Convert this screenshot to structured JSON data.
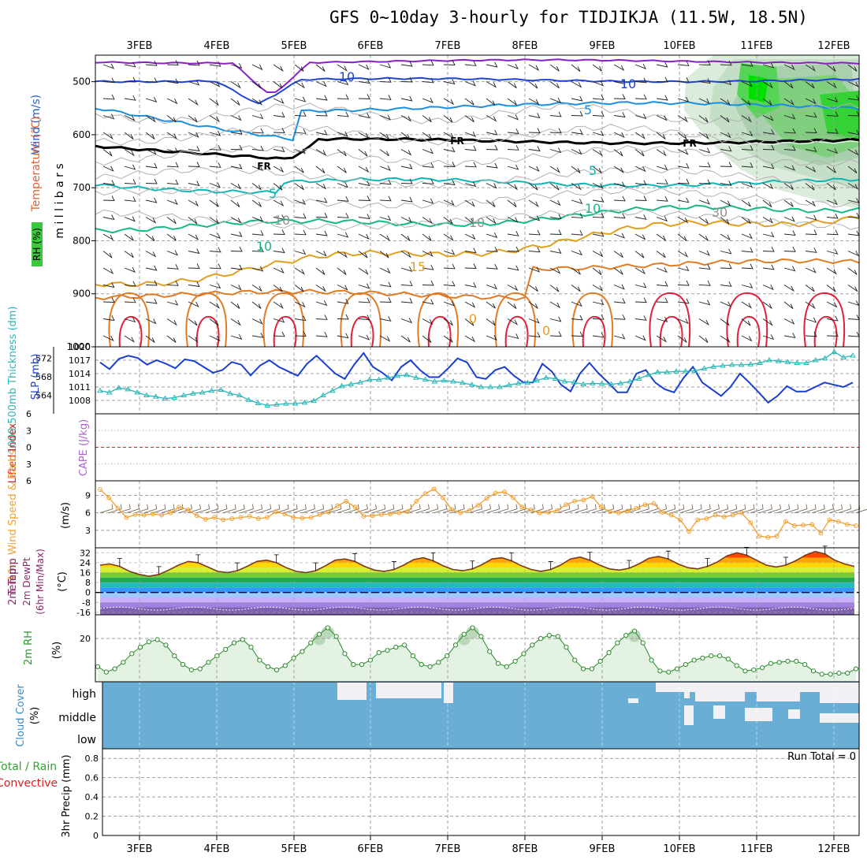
{
  "title": "GFS 0~10day 3-hourly for TIDJIKJA (11.5W, 18.5N)",
  "dates": [
    "3FEB",
    "4FEB",
    "5FEB",
    "6FEB",
    "7FEB",
    "8FEB",
    "9FEB",
    "10FEB",
    "11FEB",
    "12FEB"
  ],
  "colors": {
    "temp_warm": "#e08a1e",
    "temp_hot": "#e8213a",
    "wind_cyan": "#15a9d6",
    "wind_blue": "#1e45d0",
    "slp": "#1a3fd0",
    "thickness": "#2bb7b7",
    "wind10m": "#f0a030",
    "rh_line": "#2a8a2a",
    "rh_fill": "#e4f2e4",
    "cloud": "#6aaed6",
    "grid": "#a0a0a0",
    "zero_line": "#e02020"
  },
  "chart_data": [
    {
      "type": "heatmap",
      "panel": "cross-section",
      "ylabel": "m i l l i b a r s",
      "side_labels": [
        "Wind (m/s)",
        "Temperature (°C)",
        "RH (%)"
      ],
      "yticks": [
        500,
        600,
        700,
        800,
        900,
        1000
      ],
      "ylim": [
        1000,
        450
      ],
      "contour_labels": [
        "10",
        "10",
        "5",
        "FR",
        "FR",
        "FR",
        "5",
        "5",
        "10",
        "10",
        "15",
        "10",
        "10",
        "30",
        "0",
        "0"
      ]
    },
    {
      "type": "line",
      "panel": "slp-thickness",
      "left_label": "1000-500mb Thickness (dm)",
      "right_label": "SLP (mb)",
      "left_ticks": [
        572,
        568,
        564
      ],
      "right_ticks": [
        1020,
        1017,
        1014,
        1011,
        1008
      ],
      "series": [
        {
          "name": "SLP",
          "axis": "right",
          "values": [
            1016.5,
            1015.0,
            1017.3,
            1018.0,
            1017.5,
            1016.0,
            1017.0,
            1016.2,
            1015.2,
            1017.2,
            1016.8,
            1015.5,
            1014.2,
            1014.8,
            1016.6,
            1016.0,
            1013.6,
            1015.8,
            1017.0,
            1015.5,
            1014.5,
            1013.5,
            1016.2,
            1018.0,
            1016.0,
            1014.0,
            1012.8,
            1016.0,
            1018.6,
            1015.5,
            1014.2,
            1012.5,
            1015.5,
            1017.0,
            1014.8,
            1013.2,
            1013.2,
            1015.2,
            1017.4,
            1016.5,
            1013.2,
            1012.8,
            1014.8,
            1015.5,
            1013.5,
            1012.0,
            1012.0,
            1016.2,
            1014.5,
            1011.5,
            1010.0,
            1014.0,
            1016.4,
            1014.0,
            1012.0,
            1009.8,
            1009.8,
            1014.0,
            1014.8,
            1012.0,
            1010.5,
            1009.8,
            1013.0,
            1015.5,
            1012.0,
            1010.5,
            1009.0,
            1011.0,
            1014.0,
            1012.0,
            1009.8,
            1007.5,
            1009.0,
            1011.2,
            1010.0,
            1010.0,
            1011.0,
            1012.0,
            1011.5,
            1011.0,
            1012.0
          ]
        },
        {
          "name": "Thickness",
          "axis": "left",
          "values": [
            565.0,
            564.6,
            565.6,
            565.3,
            564.6,
            564.0,
            563.7,
            563.3,
            563.5,
            564.0,
            564.4,
            564.6,
            565.0,
            565.2,
            564.4,
            564.0,
            563.0,
            562.3,
            561.8,
            562.0,
            562.2,
            562.2,
            562.4,
            562.8,
            564.0,
            565.0,
            566.0,
            566.4,
            566.8,
            567.4,
            567.4,
            567.8,
            568.2,
            568.4,
            567.8,
            567.4,
            567.0,
            567.2,
            567.0,
            566.7,
            566.3,
            565.8,
            565.8,
            565.8,
            566.2,
            566.6,
            566.7,
            567.2,
            567.8,
            567.6,
            567.0,
            566.8,
            566.4,
            566.6,
            566.5,
            566.4,
            566.6,
            567.0,
            567.6,
            568.4,
            569.0,
            569.0,
            569.2,
            569.2,
            569.3,
            569.8,
            570.2,
            570.4,
            570.6,
            570.6,
            570.7,
            571.0,
            571.6,
            571.4,
            571.2,
            571.0,
            571.0,
            571.6,
            572.0,
            573.4,
            572.2,
            572.6
          ]
        }
      ]
    },
    {
      "type": "line",
      "panel": "cape-li",
      "left_label": "Lifted Index",
      "right_label": "CAPE (J/kg)",
      "yticks": [
        -6,
        -3,
        0,
        3,
        6
      ],
      "ytick_labels": [
        "6",
        "3",
        "0",
        "3",
        "6"
      ],
      "ylim": [
        -6,
        6
      ],
      "series": []
    },
    {
      "type": "line",
      "panel": "wind10m",
      "left_label": "10m Wind Speed & Barbs",
      "unit_label": "(m/s)",
      "yticks": [
        3,
        6,
        9
      ],
      "ylim": [
        0,
        11.5
      ],
      "series": [
        {
          "name": "10m Wind Speed",
          "values": [
            10.0,
            8.6,
            6.8,
            5.2,
            5.7,
            5.6,
            5.8,
            5.6,
            6.0,
            7.0,
            6.5,
            5.5,
            4.9,
            5.2,
            4.8,
            5.0,
            5.2,
            5.4,
            5.0,
            5.2,
            6.2,
            5.8,
            5.2,
            5.1,
            5.2,
            5.7,
            6.1,
            7.2,
            8.0,
            7.0,
            5.4,
            5.5,
            5.7,
            5.8,
            6.0,
            6.2,
            8.0,
            9.3,
            10.1,
            8.6,
            6.6,
            6.0,
            6.4,
            7.3,
            8.5,
            9.4,
            9.6,
            8.6,
            7.0,
            6.5,
            6.0,
            6.1,
            6.4,
            7.4,
            8.0,
            8.2,
            8.8,
            7.0,
            6.2,
            6.0,
            6.3,
            6.8,
            7.4,
            7.6,
            6.1,
            5.6,
            4.8,
            2.8,
            4.8,
            5.0,
            5.6,
            5.3,
            5.6,
            6.0,
            4.3,
            2.0,
            1.8,
            2.0,
            4.5,
            3.8,
            3.9,
            4.0,
            2.5,
            4.8,
            4.5,
            4.0,
            3.8
          ]
        }
      ]
    },
    {
      "type": "area",
      "panel": "temp2m",
      "left_label": "2m Temp 2m DewPt (6hr Min/Max)",
      "unit_label": "(°C)",
      "yticks": [
        32,
        24,
        16,
        8,
        0,
        -8,
        -16
      ],
      "ylim": [
        -18,
        36
      ],
      "series": [
        {
          "name": "2m Temp",
          "values": [
            22.0,
            23.0,
            21.0,
            17.0,
            14.5,
            13.0,
            14.5,
            18.0,
            22.0,
            25.0,
            24.0,
            20.5,
            17.0,
            16.0,
            17.5,
            21.0,
            25.0,
            26.0,
            24.0,
            20.0,
            17.0,
            16.0,
            17.5,
            21.5,
            26.0,
            27.0,
            25.0,
            21.0,
            18.0,
            17.0,
            18.5,
            22.0,
            26.5,
            28.0,
            25.5,
            21.5,
            18.5,
            17.5,
            19.0,
            22.5,
            27.0,
            28.0,
            25.5,
            21.5,
            18.5,
            17.0,
            18.5,
            22.0,
            27.0,
            28.5,
            26.0,
            22.0,
            19.0,
            18.0,
            19.5,
            23.0,
            27.5,
            29.0,
            27.0,
            23.0,
            20.0,
            19.0,
            21.0,
            24.5,
            29.5,
            32.0,
            30.0,
            26.0,
            22.0,
            20.5,
            22.0,
            25.5,
            30.0,
            33.0,
            31.0,
            26.0,
            23.0,
            21.0
          ],
          "dewpoint_level": -13
        }
      ]
    },
    {
      "type": "area",
      "panel": "rh2m",
      "left_label": "2m RH",
      "unit_label": "(%)",
      "yticks": [
        20
      ],
      "ylim": [
        0,
        31
      ],
      "series": [
        {
          "name": "2m RH",
          "values": [
            7.0,
            4.5,
            6.0,
            9.0,
            13.0,
            16.0,
            18.5,
            19.5,
            17.0,
            12.0,
            8.0,
            5.5,
            6.0,
            9.0,
            12.0,
            15.0,
            18.0,
            19.5,
            16.0,
            10.0,
            7.0,
            5.5,
            7.5,
            11.0,
            14.0,
            18.0,
            22.0,
            25.0,
            21.0,
            13.0,
            8.0,
            8.0,
            10.0,
            13.5,
            14.5,
            16.0,
            17.0,
            12.0,
            8.0,
            7.0,
            9.0,
            12.0,
            17.0,
            22.0,
            25.0,
            21.0,
            14.0,
            8.5,
            7.0,
            9.5,
            13.0,
            17.0,
            20.0,
            21.5,
            21.0,
            16.0,
            10.0,
            6.0,
            6.0,
            9.5,
            13.5,
            18.0,
            21.5,
            23.5,
            18.0,
            10.0,
            5.0,
            4.5,
            6.0,
            8.0,
            10.0,
            11.0,
            12.0,
            12.0,
            10.5,
            7.5,
            5.0,
            5.5,
            6.5,
            8.5,
            9.0,
            9.5,
            9.5,
            8.0,
            5.0,
            3.5,
            3.5,
            4.0,
            4.0,
            6.0
          ]
        }
      ]
    },
    {
      "type": "heatmap",
      "panel": "cloud",
      "left_label": "Cloud Cover",
      "unit_label": "(%)",
      "rows": [
        "high",
        "middle",
        "low"
      ]
    },
    {
      "type": "bar",
      "panel": "precip",
      "left_label": "3hr Precip (mm)",
      "legend_lines": [
        "Total / Rain",
        "Convective"
      ],
      "annotation": "Run Total = 0",
      "yticks": [
        0,
        0.2,
        0.4,
        0.6,
        0.8
      ],
      "ylim": [
        0,
        0.9
      ],
      "run_total": 0,
      "values": []
    }
  ]
}
